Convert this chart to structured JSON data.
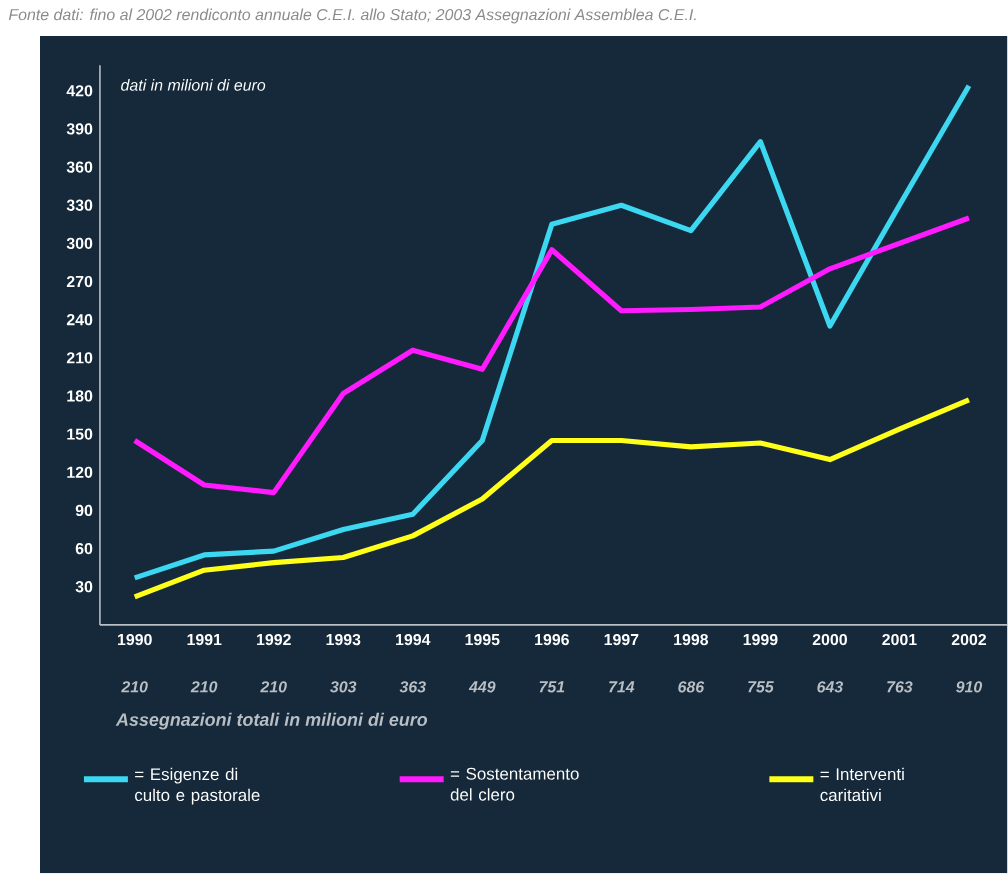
{
  "chart_data": {
    "type": "line",
    "annotations": [
      "Fonte dati: fino al 2002 rendiconto annuale C.E.I. allo Stato; 2003 Assegnazioni Assemblea C.E.I."
    ],
    "ylabel": "dati in milioni di euro",
    "xlabel": "Assegnazioni totali in milioni di euro",
    "x": [
      1990,
      1991,
      1992,
      1993,
      1994,
      1995,
      1996,
      1997,
      1998,
      1999,
      2000,
      2001,
      2002
    ],
    "xlim": [
      1989.5,
      2002.55
    ],
    "xticks": [
      1990,
      1991,
      1992,
      1993,
      1994,
      1995,
      1996,
      1997,
      1998,
      1999,
      2000,
      2001,
      2002
    ],
    "ylim": [
      0,
      440
    ],
    "yticks": [
      30,
      60,
      90,
      120,
      150,
      180,
      210,
      240,
      270,
      300,
      330,
      360,
      390,
      420
    ],
    "totals": [
      "210",
      "210",
      "210",
      "303",
      "363",
      "449",
      "751",
      "714",
      "686",
      "755",
      "643",
      "763",
      "910"
    ],
    "series": [
      {
        "name": "= Esigenze di culto e pastorale",
        "color": "#3cd7f0",
        "values": [
          37,
          55,
          58,
          75,
          87,
          145,
          315,
          330,
          310,
          380,
          235,
          330,
          424
        ]
      },
      {
        "name": "= Sostentamento del clero",
        "color": "#ff1aff",
        "values": [
          145,
          110,
          104,
          182,
          216,
          201,
          295,
          247,
          248,
          250,
          280,
          300,
          320
        ]
      },
      {
        "name": "= Interventi caritativi",
        "color": "#ffff1a",
        "values": [
          22,
          43,
          49,
          53,
          70,
          99,
          145,
          145,
          140,
          143,
          130,
          154,
          177
        ]
      }
    ],
    "marker": "none",
    "line_style": "solid",
    "grid": false,
    "legend": "bottom"
  }
}
